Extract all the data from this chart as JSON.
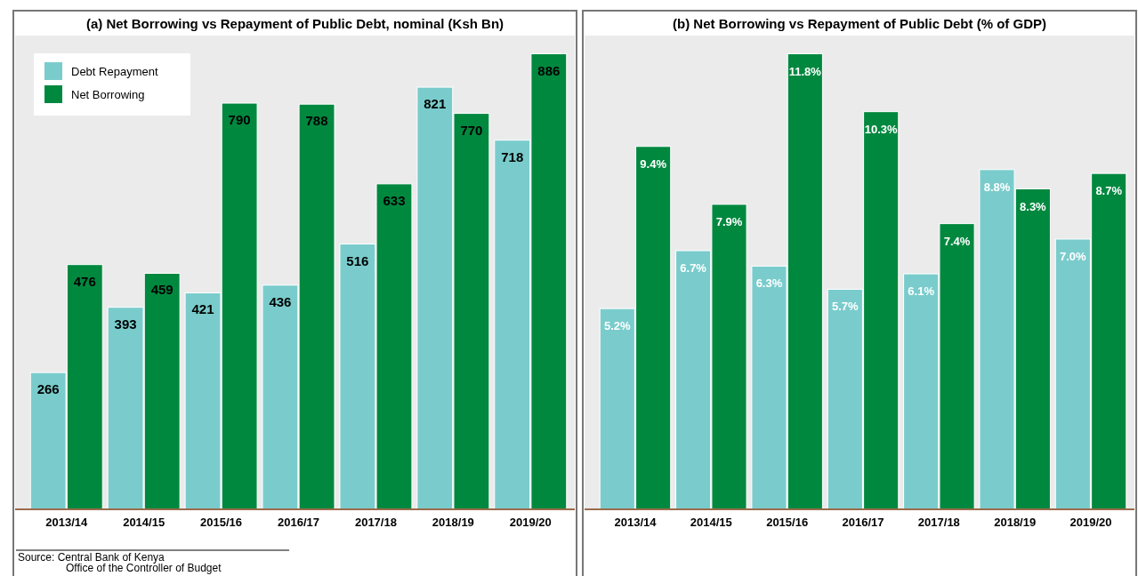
{
  "chart_data": [
    {
      "type": "bar",
      "title": "(a) Net Borrowing vs Repayment of Public Debt, nominal (Ksh Bn)",
      "categories": [
        "2013/14",
        "2014/15",
        "2015/16",
        "2016/17",
        "2017/18",
        "2018/19",
        "2019/20"
      ],
      "series": [
        {
          "name": "Debt Repayment",
          "color": "#7acccc",
          "values": [
            266,
            393,
            421,
            436,
            516,
            821,
            718
          ]
        },
        {
          "name": "Net Borrowing",
          "color": "#00883f",
          "values": [
            476,
            459,
            790,
            788,
            633,
            770,
            886
          ]
        }
      ],
      "data_labels": true,
      "legend": "top left",
      "annotations": [
        "Source: Central Bank of Kenya",
        "Office of the Controller of Budget"
      ]
    },
    {
      "type": "bar",
      "title": "(b) Net Borrowing vs Repayment of Public Debt (% of GDP)",
      "categories": [
        "2013/14",
        "2014/15",
        "2015/16",
        "2016/17",
        "2017/18",
        "2018/19",
        "2019/20"
      ],
      "series": [
        {
          "color": "#7acccc",
          "values": [
            5.2,
            6.7,
            6.3,
            5.7,
            6.1,
            8.8,
            7.0
          ],
          "value_labels": [
            "5.2%",
            "6.7%",
            "6.3%",
            "5.7%",
            "6.1%",
            "8.8%",
            "7.0%"
          ]
        },
        {
          "color": "#00883f",
          "values": [
            9.4,
            7.9,
            11.8,
            10.3,
            7.4,
            8.3,
            8.7
          ],
          "value_labels": [
            "9.4%",
            "7.9%",
            "11.8%",
            "10.3%",
            "7.4%",
            "8.3%",
            "8.7%"
          ]
        }
      ],
      "legend": false
    }
  ]
}
